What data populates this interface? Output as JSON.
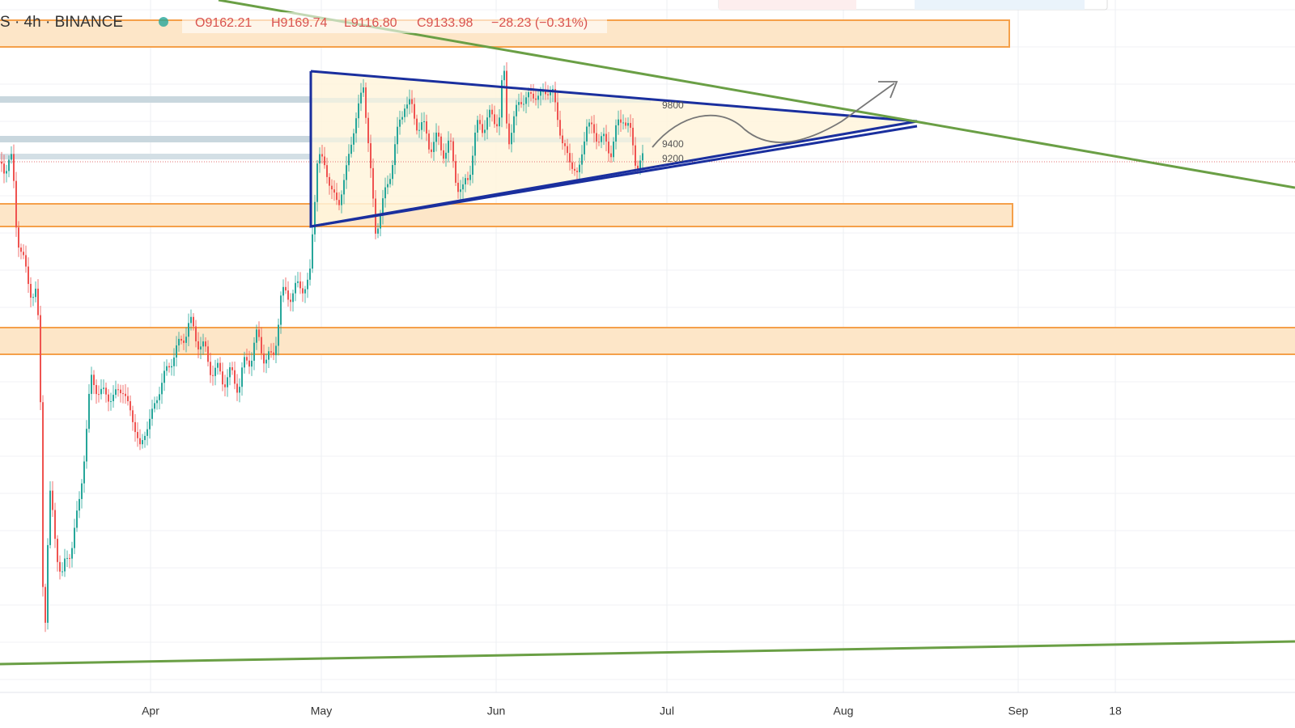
{
  "header": {
    "symbol": "S · 4h · BINANCE",
    "open": "O9162.21",
    "high": "H9169.74",
    "low": "L9116.80",
    "close": "C9133.98",
    "change": "−28.23 (−0.31%)"
  },
  "annotations": [
    "9800",
    "9400",
    "9200"
  ],
  "x_axis": {
    "labels": [
      "Apr",
      "May",
      "Jun",
      "Jul",
      "Aug",
      "Sep",
      "18"
    ]
  }
}
